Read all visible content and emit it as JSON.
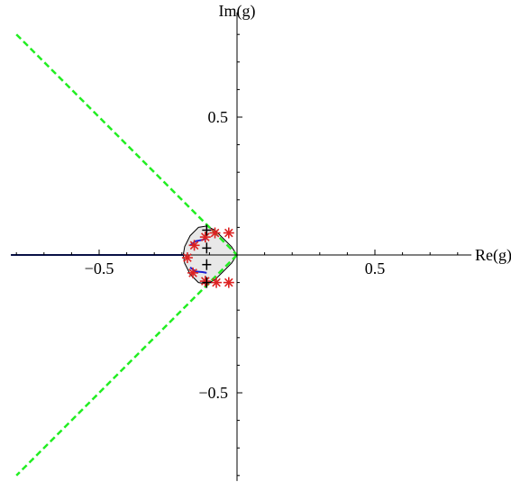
{
  "chart_data": {
    "type": "scatter",
    "title": "",
    "xlabel": "Re(g)",
    "ylabel": "Im(g)",
    "xlim": [
      -0.82,
      0.85
    ],
    "ylim": [
      -0.82,
      0.88
    ],
    "grid": false,
    "x_ticks": [
      -0.5,
      0.5
    ],
    "x_tick_labels": [
      "−0.5",
      "0.5"
    ],
    "y_ticks": [
      0.5,
      -0.5
    ],
    "y_tick_labels": [
      "0.5",
      "−0.5"
    ],
    "colors": {
      "axis": "#000000",
      "region_fill": "#e8e8e8",
      "region_edge": "#000000",
      "dashed_lines": "#22ee22",
      "branch_cut": "#10208a",
      "stars": "#dd2222",
      "blue_curves": "#1f1fd0",
      "plus_markers": "#000000"
    },
    "series": [
      {
        "kind": "dashed-line",
        "points": [
          [
            -0.8,
            0.8
          ],
          [
            -0.11,
            0.11
          ],
          [
            0.0,
            0.0
          ],
          [
            -0.11,
            -0.11
          ],
          [
            -0.8,
            -0.8
          ]
        ]
      },
      {
        "kind": "line",
        "points": [
          [
            -0.82,
            0.0
          ],
          [
            -0.19,
            0.0
          ]
        ]
      },
      {
        "kind": "region-boundary",
        "points": [
          [
            0.0,
            0.0
          ],
          [
            -0.02,
            0.03
          ],
          [
            -0.05,
            0.06
          ],
          [
            -0.08,
            0.09
          ],
          [
            -0.11,
            0.105
          ],
          [
            -0.14,
            0.1
          ],
          [
            -0.17,
            0.07
          ],
          [
            -0.19,
            0.03
          ],
          [
            -0.195,
            0.0
          ],
          [
            -0.19,
            -0.03
          ],
          [
            -0.17,
            -0.07
          ],
          [
            -0.14,
            -0.1
          ],
          [
            -0.11,
            -0.105
          ],
          [
            -0.08,
            -0.09
          ],
          [
            -0.05,
            -0.06
          ],
          [
            -0.02,
            -0.03
          ],
          [
            0.0,
            0.0
          ]
        ]
      },
      {
        "kind": "star-markers",
        "points": [
          [
            -0.03,
            0.08
          ],
          [
            -0.08,
            0.08
          ],
          [
            -0.115,
            0.065
          ],
          [
            -0.155,
            0.035
          ],
          [
            -0.18,
            -0.01
          ],
          [
            -0.16,
            -0.065
          ],
          [
            -0.115,
            -0.095
          ],
          [
            -0.075,
            -0.1
          ],
          [
            -0.03,
            -0.1
          ]
        ]
      },
      {
        "kind": "curves",
        "points": [
          [
            -0.17,
            0.035
          ],
          [
            -0.15,
            0.05
          ],
          [
            -0.125,
            0.055
          ],
          [
            -0.11,
            0.06
          ],
          [
            -0.17,
            -0.045
          ],
          [
            -0.15,
            -0.06
          ],
          [
            -0.125,
            -0.062
          ],
          [
            -0.11,
            -0.065
          ]
        ]
      },
      {
        "kind": "plus-markers",
        "points": [
          [
            -0.11,
            0.025
          ],
          [
            -0.11,
            -0.035
          ],
          [
            -0.11,
            0.09
          ],
          [
            -0.11,
            -0.1
          ]
        ]
      }
    ]
  }
}
